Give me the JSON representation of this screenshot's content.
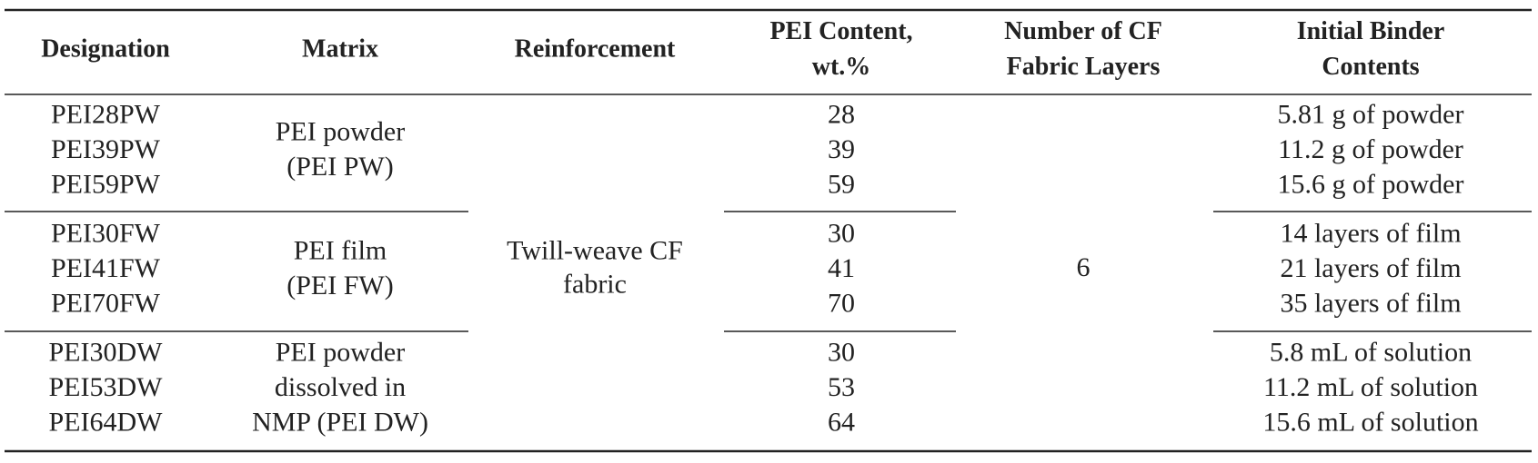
{
  "table": {
    "columns": [
      [
        "Designation"
      ],
      [
        "Matrix"
      ],
      [
        "Reinforcement"
      ],
      [
        "PEI Content,",
        "wt.%"
      ],
      [
        "Number of CF",
        "Fabric Layers"
      ],
      [
        "Initial Binder",
        "Contents"
      ]
    ],
    "groups": [
      {
        "designations": [
          "PEI28PW",
          "PEI39PW",
          "PEI59PW"
        ],
        "matrix": [
          "PEI powder",
          "(PEI PW)"
        ],
        "pei_content": [
          28,
          39,
          59
        ],
        "binder": [
          "5.81 g of powder",
          "11.2 g of powder",
          "15.6 g of powder"
        ]
      },
      {
        "designations": [
          "PEI30FW",
          "PEI41FW",
          "PEI70FW"
        ],
        "matrix": [
          "PEI film",
          "(PEI FW)"
        ],
        "pei_content": [
          30,
          41,
          70
        ],
        "binder": [
          "14 layers of film",
          "21 layers of film",
          "35 layers of film"
        ]
      },
      {
        "designations": [
          "PEI30DW",
          "PEI53DW",
          "PEI64DW"
        ],
        "matrix": [
          "PEI powder",
          "dissolved in",
          "NMP (PEI DW)"
        ],
        "pei_content": [
          30,
          53,
          64
        ],
        "binder": [
          "5.8 mL of solution",
          "11.2 mL of solution",
          "15.6 mL of solution"
        ]
      }
    ],
    "reinforcement": [
      "Twill-weave CF",
      "fabric"
    ],
    "fabric_layers": 6
  }
}
